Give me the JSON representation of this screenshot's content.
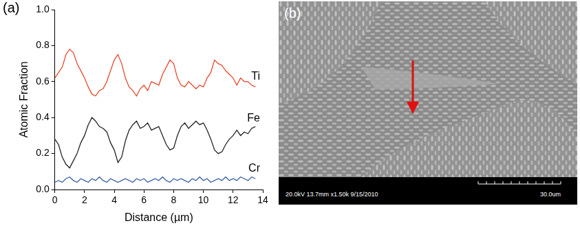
{
  "chart_data": {
    "type": "line",
    "panel_label": "(a)",
    "x_label": "Distance (µm)",
    "y_label": "Atomic Fraction",
    "xlim": [
      0,
      14
    ],
    "xticks": [
      0,
      2,
      4,
      6,
      8,
      10,
      12,
      14
    ],
    "ylim": [
      0,
      1
    ],
    "yticks": [
      {
        "value": 0,
        "label": "0.0"
      },
      0.2,
      0.4,
      0.6,
      0.8,
      {
        "value": 1,
        "label": "1.0"
      }
    ],
    "grid": false,
    "x": [
      0,
      0.25,
      0.5,
      0.75,
      1,
      1.25,
      1.5,
      1.75,
      2,
      2.25,
      2.5,
      2.75,
      3,
      3.25,
      3.5,
      3.75,
      4,
      4.25,
      4.5,
      4.75,
      5,
      5.25,
      5.5,
      5.75,
      6,
      6.25,
      6.5,
      6.75,
      7,
      7.25,
      7.5,
      7.75,
      8,
      8.25,
      8.5,
      8.75,
      9,
      9.25,
      9.5,
      9.75,
      10,
      10.25,
      10.5,
      10.75,
      11,
      11.25,
      11.5,
      11.75,
      12,
      12.25,
      12.5,
      12.75,
      13,
      13.25,
      13.5
    ],
    "series": [
      {
        "name": "Ti",
        "color": "#e8482a",
        "values": [
          0.62,
          0.65,
          0.68,
          0.75,
          0.78,
          0.76,
          0.7,
          0.66,
          0.62,
          0.57,
          0.53,
          0.52,
          0.55,
          0.56,
          0.6,
          0.66,
          0.72,
          0.75,
          0.7,
          0.62,
          0.57,
          0.55,
          0.52,
          0.56,
          0.58,
          0.55,
          0.6,
          0.59,
          0.58,
          0.64,
          0.68,
          0.72,
          0.7,
          0.62,
          0.58,
          0.57,
          0.6,
          0.58,
          0.56,
          0.58,
          0.57,
          0.62,
          0.65,
          0.72,
          0.7,
          0.69,
          0.66,
          0.64,
          0.62,
          0.58,
          0.62,
          0.6,
          0.6,
          0.58,
          0.57
        ]
      },
      {
        "name": "Fe",
        "color": "#222222",
        "values": [
          0.28,
          0.25,
          0.18,
          0.14,
          0.12,
          0.16,
          0.2,
          0.26,
          0.3,
          0.36,
          0.4,
          0.38,
          0.35,
          0.34,
          0.32,
          0.26,
          0.22,
          0.15,
          0.18,
          0.27,
          0.33,
          0.36,
          0.38,
          0.34,
          0.35,
          0.37,
          0.33,
          0.34,
          0.35,
          0.3,
          0.25,
          0.22,
          0.23,
          0.3,
          0.35,
          0.37,
          0.34,
          0.36,
          0.38,
          0.36,
          0.37,
          0.33,
          0.28,
          0.22,
          0.2,
          0.21,
          0.25,
          0.28,
          0.3,
          0.33,
          0.3,
          0.32,
          0.31,
          0.34,
          0.35
        ]
      },
      {
        "name": "Cr",
        "color": "#3a5fa8",
        "values": [
          0.04,
          0.05,
          0.04,
          0.06,
          0.07,
          0.05,
          0.04,
          0.06,
          0.05,
          0.04,
          0.06,
          0.05,
          0.07,
          0.05,
          0.04,
          0.06,
          0.05,
          0.04,
          0.05,
          0.06,
          0.05,
          0.04,
          0.06,
          0.05,
          0.06,
          0.04,
          0.05,
          0.06,
          0.05,
          0.07,
          0.05,
          0.04,
          0.06,
          0.05,
          0.06,
          0.05,
          0.04,
          0.06,
          0.05,
          0.07,
          0.05,
          0.06,
          0.04,
          0.05,
          0.06,
          0.05,
          0.07,
          0.05,
          0.06,
          0.05,
          0.07,
          0.06,
          0.05,
          0.07,
          0.06
        ]
      }
    ]
  },
  "image_panel": {
    "panel_label": "(b)",
    "info_bar": "20.0kV 13.7mm x1.50k 9/15/2010",
    "scale_label": "30.0um"
  }
}
